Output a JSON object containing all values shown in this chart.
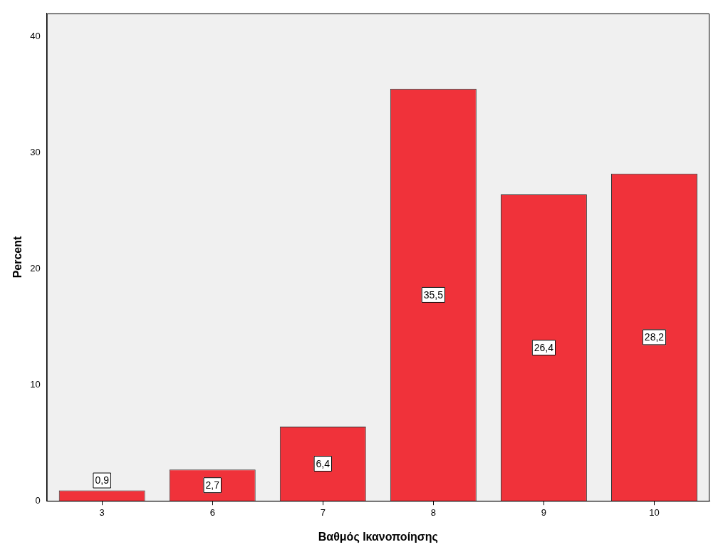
{
  "chart_data": {
    "type": "bar",
    "xlabel": "Βαθμός Ικανοποίησης",
    "ylabel": "Percent",
    "categories": [
      "3",
      "6",
      "7",
      "8",
      "9",
      "10"
    ],
    "values": [
      0.9,
      2.7,
      6.4,
      35.5,
      26.4,
      28.2
    ],
    "value_labels": [
      "0,9",
      "2,7",
      "6,4",
      "35,5",
      "26,4",
      "28,2"
    ],
    "color": "#f0323a",
    "ylim": [
      0,
      42
    ],
    "yticks": [
      0,
      10,
      20,
      30,
      40
    ],
    "grid": false,
    "legend": false
  }
}
